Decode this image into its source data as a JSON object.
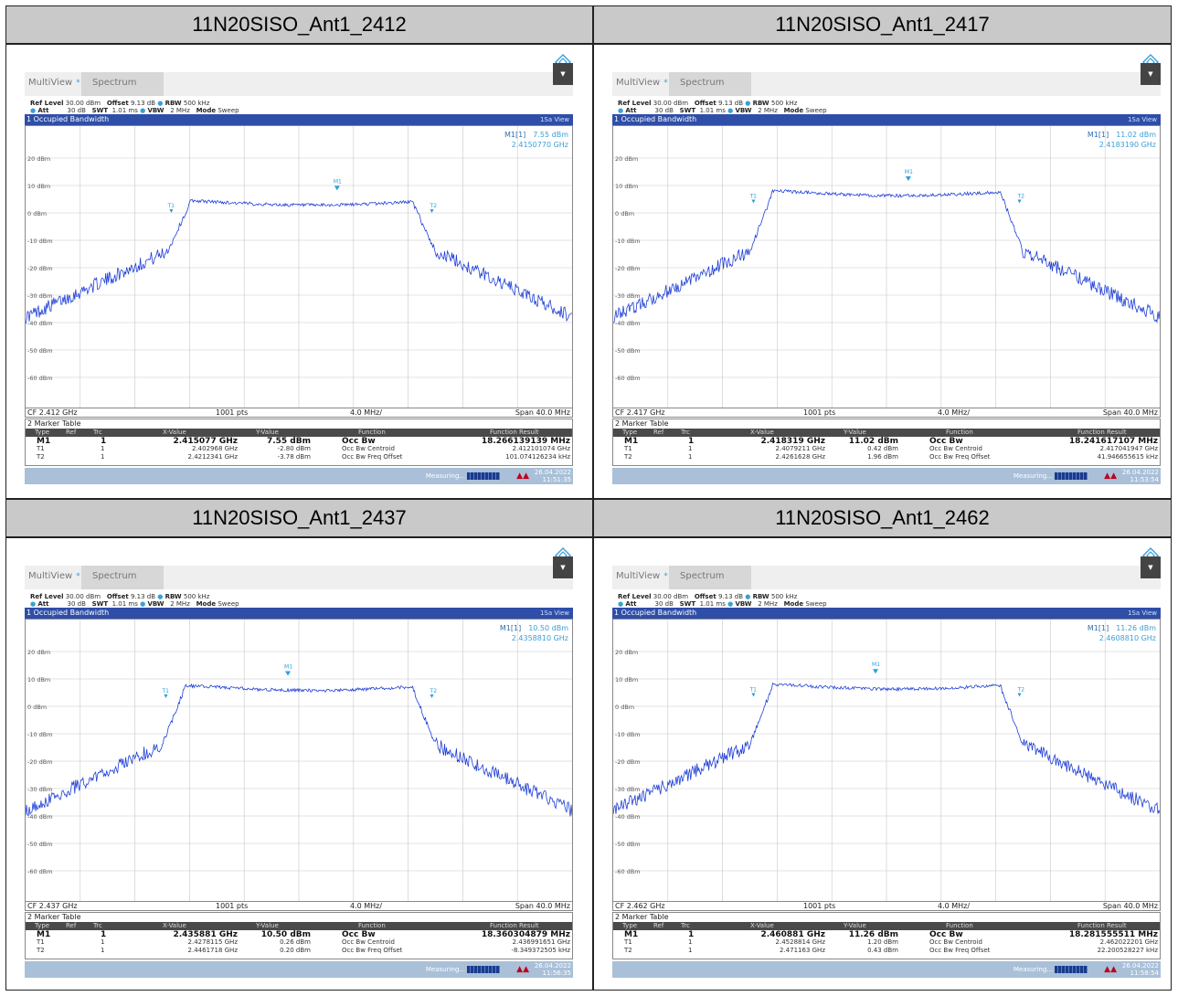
{
  "panels": [
    {
      "title": "11N20SISO_Ant1_2412",
      "tabs": {
        "multiview": "MultiView",
        "spectrum": "Spectrum"
      },
      "info1": {
        "ref_level_label": "Ref Level",
        "ref_level": "30.00 dBm",
        "offset_label": "Offset",
        "offset": "9.13 dB",
        "rbw_label": "RBW",
        "rbw": "500 kHz"
      },
      "info2": {
        "att_label": "Att",
        "att": "30 dB",
        "swt_label": "SWT",
        "swt": "1.01 ms",
        "vbw_label": "VBW",
        "vbw": "2 MHz",
        "mode_label": "Mode",
        "mode": "Sweep"
      },
      "window_title": "1 Occupied Bandwidth",
      "view": "1Sa View",
      "marker_readout": {
        "label": "M1[1]",
        "level": "7.55 dBm",
        "freq": "2.4150770 GHz"
      },
      "y_labels": [
        "20 dBm",
        "10 dBm",
        "0 dBm",
        "-10 dBm",
        "-20 dBm",
        "-30 dBm",
        "-40 dBm",
        "-50 dBm",
        "-60 dBm"
      ],
      "footer": {
        "cf": "CF 2.412 GHz",
        "pts": "1001 pts",
        "div": "4.0 MHz/",
        "span": "Span 40.0 MHz"
      },
      "table_title": "2 Marker Table",
      "table_headers": [
        "Type",
        "Ref",
        "Trc",
        "X-Value",
        "Y-Value",
        "Function",
        "Function Result"
      ],
      "rows": [
        {
          "type": "M1",
          "ref": "",
          "trc": "1",
          "x": "2.415077 GHz",
          "y": "7.55 dBm",
          "fn": "Occ Bw",
          "result": "18.266139139 MHz"
        },
        {
          "type": "T1",
          "ref": "",
          "trc": "1",
          "x": "2.402968 GHz",
          "y": "-2.80 dBm",
          "fn": "Occ Bw Centroid",
          "result": "2.412101074 GHz"
        },
        {
          "type": "T2",
          "ref": "",
          "trc": "1",
          "x": "2.4212341 GHz",
          "y": "-3.78 dBm",
          "fn": "Occ Bw Freq Offset",
          "result": "101.074126234 kHz"
        }
      ],
      "status": {
        "measuring": "Measuring...",
        "date": "26.04.2022",
        "time": "11:51:35"
      },
      "trace": {
        "top_level": 6,
        "peak": 7.55,
        "t1_frac": 0.28,
        "t2_frac": 0.73,
        "m1_frac": 0.57
      }
    },
    {
      "title": "11N20SISO_Ant1_2417",
      "tabs": {
        "multiview": "MultiView",
        "spectrum": "Spectrum"
      },
      "info1": {
        "ref_level_label": "Ref Level",
        "ref_level": "30.00 dBm",
        "offset_label": "Offset",
        "offset": "9.13 dB",
        "rbw_label": "RBW",
        "rbw": "500 kHz"
      },
      "info2": {
        "att_label": "Att",
        "att": "30 dB",
        "swt_label": "SWT",
        "swt": "1.01 ms",
        "vbw_label": "VBW",
        "vbw": "2 MHz",
        "mode_label": "Mode",
        "mode": "Sweep"
      },
      "window_title": "1 Occupied Bandwidth",
      "view": "1Sa View",
      "marker_readout": {
        "label": "M1[1]",
        "level": "11.02 dBm",
        "freq": "2.4183190 GHz"
      },
      "y_labels": [
        "20 dBm",
        "10 dBm",
        "0 dBm",
        "-10 dBm",
        "-20 dBm",
        "-30 dBm",
        "-40 dBm",
        "-50 dBm",
        "-60 dBm"
      ],
      "footer": {
        "cf": "CF 2.417 GHz",
        "pts": "1001 pts",
        "div": "4.0 MHz/",
        "span": "Span 40.0 MHz"
      },
      "table_title": "2 Marker Table",
      "table_headers": [
        "Type",
        "Ref",
        "Trc",
        "X-Value",
        "Y-Value",
        "Function",
        "Function Result"
      ],
      "rows": [
        {
          "type": "M1",
          "ref": "",
          "trc": "1",
          "x": "2.418319 GHz",
          "y": "11.02 dBm",
          "fn": "Occ Bw",
          "result": "18.241617107 MHz"
        },
        {
          "type": "T1",
          "ref": "",
          "trc": "1",
          "x": "2.4079211 GHz",
          "y": "0.42 dBm",
          "fn": "Occ Bw Centroid",
          "result": "2.417041947 GHz"
        },
        {
          "type": "T2",
          "ref": "",
          "trc": "1",
          "x": "2.4261628 GHz",
          "y": "1.96 dBm",
          "fn": "Occ Bw Freq Offset",
          "result": "41.946655615 kHz"
        }
      ],
      "status": {
        "measuring": "Measuring...",
        "date": "26.04.2022",
        "time": "11:53:54"
      },
      "trace": {
        "top_level": 9.5,
        "peak": 11.02,
        "t1_frac": 0.27,
        "t2_frac": 0.73,
        "m1_frac": 0.54
      }
    },
    {
      "title": "11N20SISO_Ant1_2437",
      "tabs": {
        "multiview": "MultiView",
        "spectrum": "Spectrum"
      },
      "info1": {
        "ref_level_label": "Ref Level",
        "ref_level": "30.00 dBm",
        "offset_label": "Offset",
        "offset": "9.13 dB",
        "rbw_label": "RBW",
        "rbw": "500 kHz"
      },
      "info2": {
        "att_label": "Att",
        "att": "30 dB",
        "swt_label": "SWT",
        "swt": "1.01 ms",
        "vbw_label": "VBW",
        "vbw": "2 MHz",
        "mode_label": "Mode",
        "mode": "Sweep"
      },
      "window_title": "1 Occupied Bandwidth",
      "view": "1Sa View",
      "marker_readout": {
        "label": "M1[1]",
        "level": "10.50 dBm",
        "freq": "2.4358810 GHz"
      },
      "y_labels": [
        "20 dBm",
        "10 dBm",
        "0 dBm",
        "-10 dBm",
        "-20 dBm",
        "-30 dBm",
        "-40 dBm",
        "-50 dBm",
        "-60 dBm"
      ],
      "footer": {
        "cf": "CF 2.437 GHz",
        "pts": "1001 pts",
        "div": "4.0 MHz/",
        "span": "Span 40.0 MHz"
      },
      "table_title": "2 Marker Table",
      "table_headers": [
        "Type",
        "Ref",
        "Trc",
        "X-Value",
        "Y-Value",
        "Function",
        "Function Result"
      ],
      "rows": [
        {
          "type": "M1",
          "ref": "",
          "trc": "1",
          "x": "2.435881 GHz",
          "y": "10.50 dBm",
          "fn": "Occ Bw",
          "result": "18.360304879 MHz"
        },
        {
          "type": "T1",
          "ref": "",
          "trc": "1",
          "x": "2.4278115 GHz",
          "y": "0.26 dBm",
          "fn": "Occ Bw Centroid",
          "result": "2.436991651 GHz"
        },
        {
          "type": "T2",
          "ref": "",
          "trc": "1",
          "x": "2.4461718 GHz",
          "y": "0.20 dBm",
          "fn": "Occ Bw Freq Offset",
          "result": "-8.349372505 kHz"
        }
      ],
      "status": {
        "measuring": "Measuring...",
        "date": "26.04.2022",
        "time": "11:56:35"
      },
      "trace": {
        "top_level": 9,
        "peak": 10.5,
        "t1_frac": 0.27,
        "t2_frac": 0.73,
        "m1_frac": 0.48
      }
    },
    {
      "title": "11N20SISO_Ant1_2462",
      "tabs": {
        "multiview": "MultiView",
        "spectrum": "Spectrum"
      },
      "info1": {
        "ref_level_label": "Ref Level",
        "ref_level": "30.00 dBm",
        "offset_label": "Offset",
        "offset": "9.13 dB",
        "rbw_label": "RBW",
        "rbw": "500 kHz"
      },
      "info2": {
        "att_label": "Att",
        "att": "30 dB",
        "swt_label": "SWT",
        "swt": "1.01 ms",
        "vbw_label": "VBW",
        "vbw": "2 MHz",
        "mode_label": "Mode",
        "mode": "Sweep"
      },
      "window_title": "1 Occupied Bandwidth",
      "view": "1Sa View",
      "marker_readout": {
        "label": "M1[1]",
        "level": "11.26 dBm",
        "freq": "2.4608810 GHz"
      },
      "y_labels": [
        "20 dBm",
        "10 dBm",
        "0 dBm",
        "-10 dBm",
        "-20 dBm",
        "-30 dBm",
        "-40 dBm",
        "-50 dBm",
        "-60 dBm"
      ],
      "footer": {
        "cf": "CF 2.462 GHz",
        "pts": "1001 pts",
        "div": "4.0 MHz/",
        "span": "Span 40.0 MHz"
      },
      "table_title": "2 Marker Table",
      "table_headers": [
        "Type",
        "Ref",
        "Trc",
        "X-Value",
        "Y-Value",
        "Function",
        "Function Result"
      ],
      "rows": [
        {
          "type": "M1",
          "ref": "",
          "trc": "1",
          "x": "2.460881 GHz",
          "y": "11.26 dBm",
          "fn": "Occ Bw",
          "result": "18.281555511 MHz"
        },
        {
          "type": "T1",
          "ref": "",
          "trc": "1",
          "x": "2.4528814 GHz",
          "y": "1.20 dBm",
          "fn": "Occ Bw Centroid",
          "result": "2.462022201 GHz"
        },
        {
          "type": "T2",
          "ref": "",
          "trc": "1",
          "x": "2.471163 GHz",
          "y": "0.43 dBm",
          "fn": "Occ Bw Freq Offset",
          "result": "22.200528227 kHz"
        }
      ],
      "status": {
        "measuring": "Measuring...",
        "date": "26.04.2022",
        "time": "11:58:54"
      },
      "trace": {
        "top_level": 9.5,
        "peak": 11.26,
        "t1_frac": 0.27,
        "t2_frac": 0.73,
        "m1_frac": 0.48
      }
    }
  ],
  "colors": {
    "trace": "#1f3fd6",
    "marker": "#2a9fd8",
    "header_bg": "#c9c9c9",
    "title_bar": "#2f4ea8"
  }
}
